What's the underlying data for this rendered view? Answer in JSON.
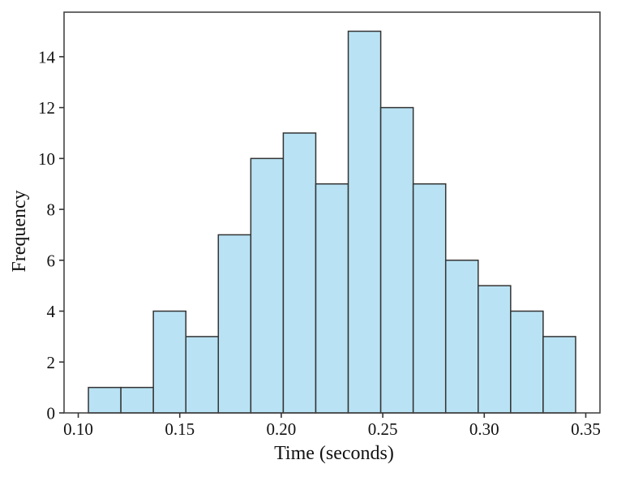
{
  "chart_data": {
    "type": "bar",
    "subtype": "histogram",
    "title": "",
    "xlabel": "Time (seconds)",
    "ylabel": "Frequency",
    "bin_edges": [
      0.105,
      0.121,
      0.137,
      0.153,
      0.169,
      0.185,
      0.201,
      0.217,
      0.233,
      0.249,
      0.265,
      0.281,
      0.297,
      0.313,
      0.329,
      0.345
    ],
    "frequencies": [
      1,
      1,
      4,
      3,
      7,
      10,
      11,
      9,
      15,
      12,
      9,
      6,
      5,
      4,
      3
    ],
    "total_count": 100,
    "x_ticks": [
      0.1,
      0.15,
      0.2,
      0.25,
      0.3,
      0.35
    ],
    "x_tick_labels": [
      "0.10",
      "0.15",
      "0.20",
      "0.25",
      "0.30",
      "0.35"
    ],
    "y_ticks": [
      0,
      2,
      4,
      6,
      8,
      10,
      12,
      14
    ],
    "y_tick_labels": [
      "0",
      "2",
      "4",
      "6",
      "8",
      "10",
      "12",
      "14"
    ],
    "xlim": [
      0.093,
      0.357
    ],
    "ylim": [
      0,
      15.75
    ],
    "grid": false,
    "legend": "none",
    "colors": {
      "bar_fill": "#b9e3f4",
      "bar_edge": "#333333",
      "spine": "#454545",
      "tick": "#333333",
      "text": "#111111",
      "background": "#ffffff"
    }
  }
}
